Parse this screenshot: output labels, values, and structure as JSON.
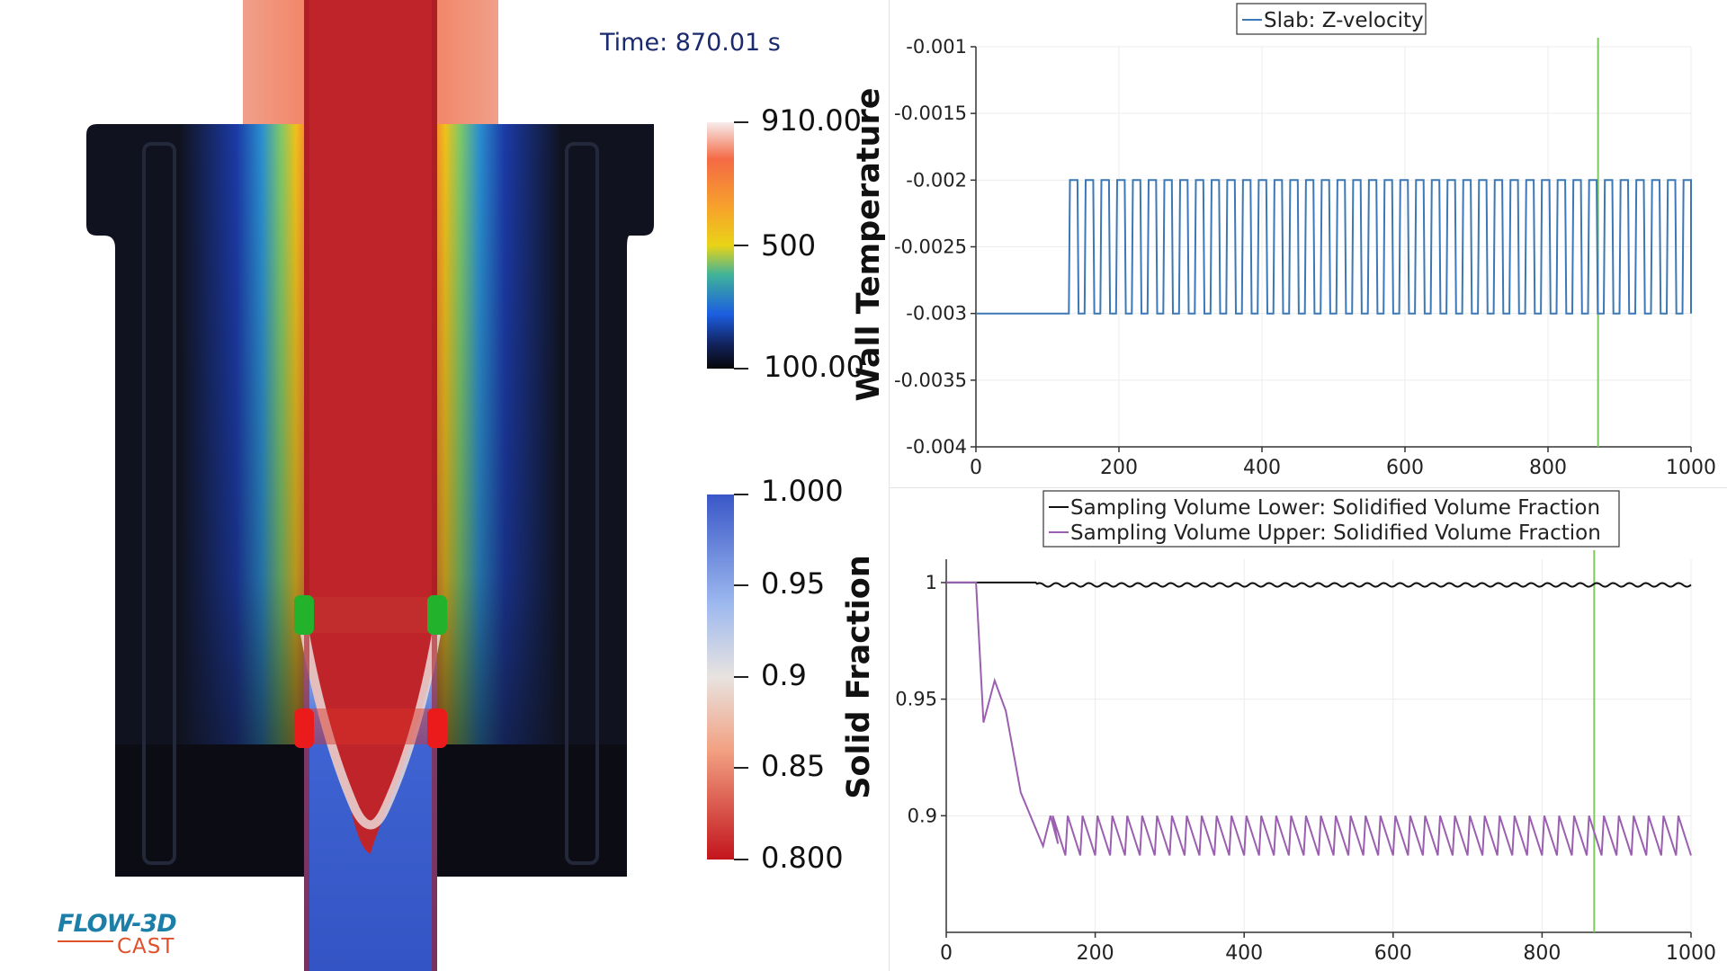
{
  "time_label": "Time: 870.01 s",
  "logo": {
    "main": "FLOW-3D",
    "sub": "CAST"
  },
  "colorbars": {
    "temperature": {
      "title": "Wall Temperature",
      "labels": [
        "910.00",
        "500",
        "100.00"
      ]
    },
    "solid_fraction": {
      "title": "Solid Fraction",
      "labels": [
        "1.000",
        "0.95",
        "0.9",
        "0.85",
        "0.800"
      ]
    }
  },
  "chart_data": [
    {
      "type": "line",
      "legend": [
        "Slab: Z-velocity"
      ],
      "legend_position": "top-center",
      "xlim": [
        0,
        1000
      ],
      "ylim": [
        -0.004,
        -0.001
      ],
      "xticks": [
        "0",
        "200",
        "400",
        "600",
        "800",
        "1000"
      ],
      "yticks": [
        "-0.001",
        "-0.0015",
        "-0.002",
        "-0.0025",
        "-0.003",
        "-0.0035",
        "-0.004"
      ],
      "grid": true,
      "marker_x": 870,
      "series": [
        {
          "name": "Slab: Z-velocity",
          "color": "#3b78b5",
          "base_value": -0.003,
          "peak_value": -0.002,
          "pulse_start": 130,
          "pulse_period": 22,
          "pulse_width": 12
        }
      ]
    },
    {
      "type": "line",
      "legend": [
        "Sampling Volume Lower: Solidified Volume Fraction",
        "Sampling Volume Upper: Solidified Volume Fraction"
      ],
      "legend_position": "top-center",
      "xlim": [
        0,
        1000
      ],
      "ylim": [
        0.85,
        1.01
      ],
      "xticks": [
        "0",
        "200",
        "400",
        "600",
        "800",
        "1000"
      ],
      "yticks": [
        "1",
        "0.95",
        "0.9"
      ],
      "grid": true,
      "marker_x": 870,
      "series": [
        {
          "name": "Sampling Volume Lower: Solidified Volume Fraction",
          "color": "#111111",
          "x": [
            0,
            120,
            140,
            1000
          ],
          "y": [
            1.0,
            1.0,
            0.999,
            0.999
          ],
          "ripple_amplitude": 0.0008,
          "ripple_period": 22
        },
        {
          "name": "Sampling Volume Upper: Solidified Volume Fraction",
          "color": "#9b5fb0",
          "x": [
            0,
            40,
            50,
            65,
            80,
            100,
            130,
            140,
            150,
            1000
          ],
          "y": [
            1.0,
            1.0,
            0.94,
            0.958,
            0.945,
            0.91,
            0.887,
            0.9,
            0.888,
            0.89
          ],
          "saw_start": 140,
          "saw_period": 20,
          "saw_high": 0.9,
          "saw_low": 0.883
        }
      ]
    }
  ]
}
